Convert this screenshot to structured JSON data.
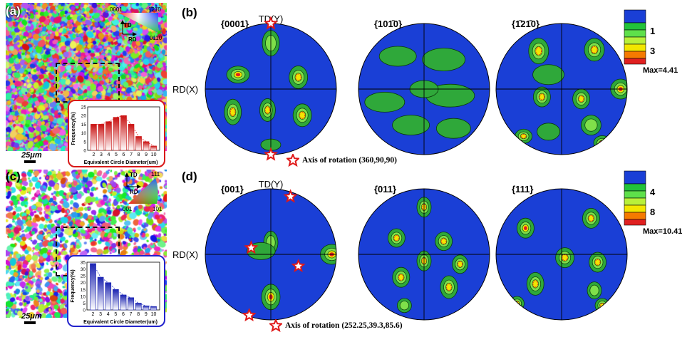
{
  "panel_a": {
    "label": "(a)",
    "ipf_corners": [
      "0001",
      "1̄21̄0",
      "011̄0"
    ],
    "axes": [
      "TD",
      "RD"
    ],
    "scalebar": "25μm",
    "hist": {
      "ylabel": "Frequency(%)",
      "xlabel": "Equivalent Circle Diameter(um)",
      "yticks": [
        "0",
        "5",
        "10",
        "15",
        "20",
        "25"
      ],
      "xticks": [
        "2",
        "3",
        "4",
        "5",
        "6",
        "7",
        "8",
        "9",
        "10"
      ],
      "values": [
        15,
        15,
        16.5,
        19,
        20,
        15,
        8,
        5,
        2.5
      ],
      "ymax": 25
    }
  },
  "panel_c": {
    "label": "(c)",
    "ipf_corners": [
      "111",
      "001",
      "101"
    ],
    "axes": [
      "TD",
      "RD"
    ],
    "scalebar": "25μm",
    "hist": {
      "ylabel": "Frequency(%)",
      "xlabel": "Equivalent Circle Diameter(um)",
      "yticks": [
        "0",
        "5",
        "10",
        "15",
        "20",
        "25",
        "30",
        "35"
      ],
      "xticks": [
        "2",
        "3",
        "4",
        "5",
        "6",
        "7",
        "8",
        "9",
        "10"
      ],
      "values": [
        34,
        24,
        20,
        15,
        11,
        9,
        5,
        3,
        2.5
      ],
      "ymax": 35
    }
  },
  "panel_b": {
    "label": "(b)",
    "poles": [
      "{0001}",
      "{101̄0}",
      "{1̄21̄0}"
    ],
    "td_label": "TD(Y)",
    "rd_label": "RD(X)",
    "legend_ticks": [
      "1",
      "3"
    ],
    "max_label": "Max=4.41",
    "rotation_note": "Axis of rotation (360,90,90)"
  },
  "panel_d": {
    "label": "(d)",
    "poles": [
      "{001}",
      "{011}",
      "{111}"
    ],
    "td_label": "TD(Y)",
    "rd_label": "RD(X)",
    "legend_ticks": [
      "4",
      "8"
    ],
    "max_label": "Max=10.41",
    "rotation_note": "Axis of rotation (252.25,39.3,85.6)"
  },
  "colors": {
    "pf_low": "#1a3fd6",
    "pf_mid": "#22c23a",
    "pf_high": "#f2e600",
    "pf_peak": "#e02020",
    "hist_red": "#e02020",
    "hist_blue": "#2a3acc",
    "star": "#e01818"
  }
}
